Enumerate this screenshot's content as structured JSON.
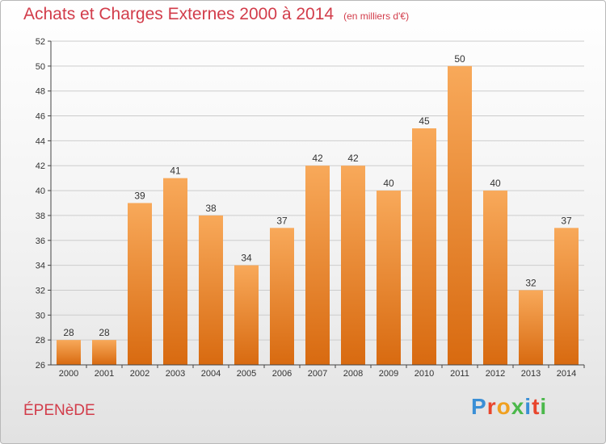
{
  "header": {
    "title": "Achats et Charges Externes 2000 à 2014",
    "subtitle": "(en milliers d'€)"
  },
  "footer": {
    "commune": "ÉPENèDE",
    "brand": {
      "text": "Proxiti",
      "letter_colors": [
        "#3a8fd6",
        "#e8452c",
        "#f0a020",
        "#4bb84b",
        "#3a8fd6",
        "#e8452c",
        "#4bb84b"
      ]
    }
  },
  "colors": {
    "bar_top": "#f8a95a",
    "bar_bottom": "#d86a10",
    "title": "#d23c4a",
    "grid": "#cccccc"
  },
  "chart_data": {
    "type": "bar",
    "categories": [
      "2000",
      "2001",
      "2002",
      "2003",
      "2004",
      "2005",
      "2006",
      "2007",
      "2008",
      "2009",
      "2010",
      "2011",
      "2012",
      "2013",
      "2014"
    ],
    "values": [
      28,
      28,
      39,
      41,
      38,
      34,
      37,
      42,
      42,
      40,
      45,
      50,
      40,
      32,
      37
    ],
    "title": "Achats et Charges Externes 2000 à 2014",
    "subtitle": "(en milliers d'€)",
    "xlabel": "",
    "ylabel": "",
    "ylim": [
      26,
      52
    ],
    "yticks": [
      26,
      28,
      30,
      32,
      34,
      36,
      38,
      40,
      42,
      44,
      46,
      48,
      50,
      52
    ],
    "grid": true,
    "legend": "none"
  }
}
